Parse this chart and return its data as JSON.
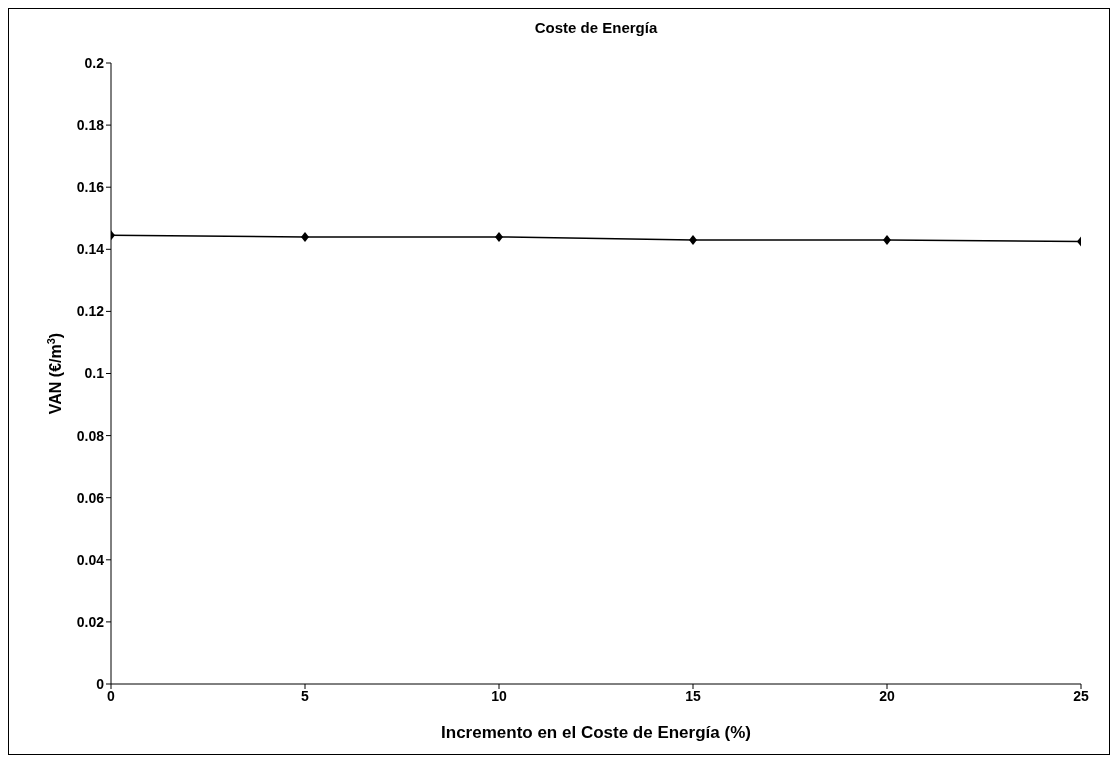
{
  "chart_data": {
    "type": "line",
    "title": "Coste de Energía",
    "xlabel": "Incremento en el Coste de Energía (%)",
    "ylabel": "VAN (€/m$^{3}$)",
    "x": [
      0,
      5,
      10,
      15,
      20,
      25
    ],
    "series": [
      {
        "color": "#000000",
        "values": [
          0.1445,
          0.144,
          0.144,
          0.143,
          0.143,
          0.1425
        ]
      }
    ],
    "xlim": [
      0,
      25
    ],
    "xticks": [
      0,
      5,
      10,
      15,
      20,
      25
    ],
    "ylim": [
      0,
      0.2
    ],
    "yticks": [
      0,
      0.02,
      0.04,
      0.06,
      0.08,
      0.1,
      0.12,
      0.14,
      0.16,
      0.18,
      0.2
    ],
    "grid": false,
    "legend": false,
    "marker": "diamond",
    "line_style": "solid"
  }
}
